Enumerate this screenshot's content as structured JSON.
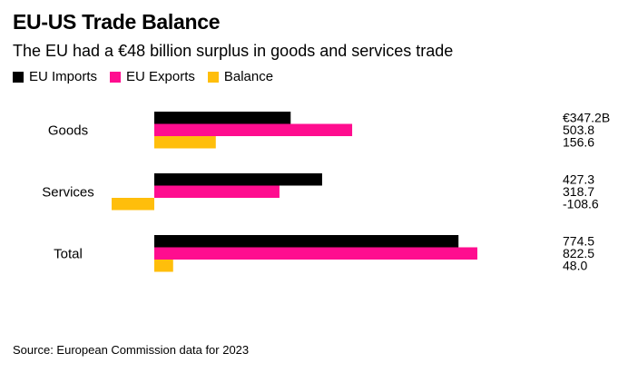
{
  "title": "EU-US Trade Balance",
  "subtitle": "The EU had a €48 billion surplus in goods and services trade",
  "source": "Source: European Commission data for 2023",
  "legend": [
    {
      "label": "EU Imports",
      "color": "#000000"
    },
    {
      "label": "EU Exports",
      "color": "#ff0d8f"
    },
    {
      "label": "Balance",
      "color": "#ffbe0b"
    }
  ],
  "chart_data": {
    "type": "bar",
    "orientation": "horizontal",
    "categories": [
      "Goods",
      "Services",
      "Total"
    ],
    "series": [
      {
        "name": "EU Imports",
        "color": "#000000",
        "values": [
          347.2,
          427.3,
          774.5
        ],
        "labels": [
          "€347.2B",
          "427.3",
          "774.5"
        ]
      },
      {
        "name": "EU Exports",
        "color": "#ff0d8f",
        "values": [
          503.8,
          318.7,
          822.5
        ],
        "labels": [
          "503.8",
          "318.7",
          "822.5"
        ]
      },
      {
        "name": "Balance",
        "color": "#ffbe0b",
        "values": [
          156.6,
          -108.6,
          48.0
        ],
        "labels": [
          "156.6",
          "-108.6",
          "48.0"
        ]
      }
    ],
    "unit": "€ billion",
    "legend_position": "top-left",
    "grid": false
  }
}
